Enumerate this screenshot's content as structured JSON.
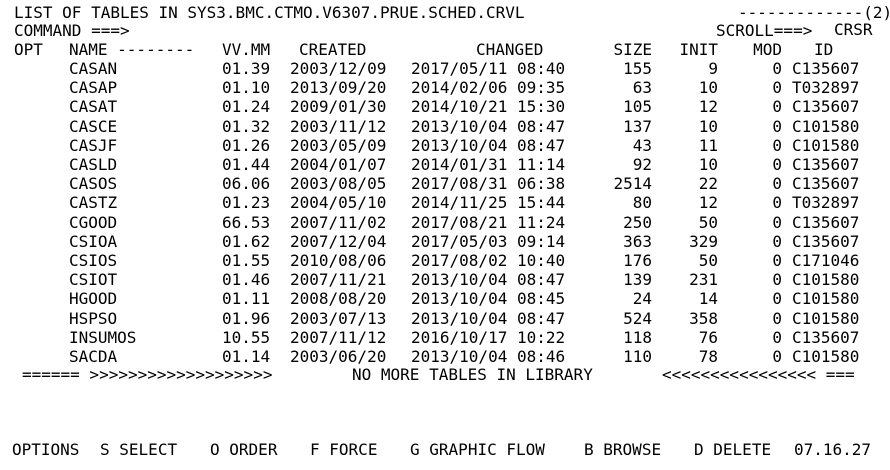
{
  "header": {
    "title": "LIST OF TABLES IN SYS3.BMC.CTMO.V6307.PRUE.SCHED.CRVL",
    "page_indicator": "-------------(2)",
    "command_label": "COMMAND ===>",
    "command_value": "",
    "scroll_label": "SCROLL===>",
    "scroll_value": "CRSR"
  },
  "columns": {
    "opt": "OPT",
    "name": "NAME --------",
    "vvmm": "VV.MM",
    "created": "CREATED",
    "changed": "CHANGED",
    "size": "SIZE",
    "init": "INIT",
    "mod": "MOD",
    "id": "ID"
  },
  "rows": [
    {
      "name": "CASAN",
      "vvmm": "01.39",
      "created": "2003/12/09",
      "changed": "2017/05/11 08:40",
      "size": "155",
      "init": "9",
      "mod": "0",
      "id": "C135607"
    },
    {
      "name": "CASAP",
      "vvmm": "01.10",
      "created": "2013/09/20",
      "changed": "2014/02/06 09:35",
      "size": "63",
      "init": "10",
      "mod": "0",
      "id": "T032897"
    },
    {
      "name": "CASAT",
      "vvmm": "01.24",
      "created": "2009/01/30",
      "changed": "2014/10/21 15:30",
      "size": "105",
      "init": "12",
      "mod": "0",
      "id": "C135607"
    },
    {
      "name": "CASCE",
      "vvmm": "01.32",
      "created": "2003/11/12",
      "changed": "2013/10/04 08:47",
      "size": "137",
      "init": "10",
      "mod": "0",
      "id": "C101580"
    },
    {
      "name": "CASJF",
      "vvmm": "01.26",
      "created": "2003/05/09",
      "changed": "2013/10/04 08:47",
      "size": "43",
      "init": "11",
      "mod": "0",
      "id": "C101580"
    },
    {
      "name": "CASLD",
      "vvmm": "01.44",
      "created": "2004/01/07",
      "changed": "2014/01/31 11:14",
      "size": "92",
      "init": "10",
      "mod": "0",
      "id": "C135607"
    },
    {
      "name": "CASOS",
      "vvmm": "06.06",
      "created": "2003/08/05",
      "changed": "2017/08/31 06:38",
      "size": "2514",
      "init": "22",
      "mod": "0",
      "id": "C135607"
    },
    {
      "name": "CASTZ",
      "vvmm": "01.23",
      "created": "2004/05/10",
      "changed": "2014/11/25 15:44",
      "size": "80",
      "init": "12",
      "mod": "0",
      "id": "T032897"
    },
    {
      "name": "CGOOD",
      "vvmm": "66.53",
      "created": "2007/11/02",
      "changed": "2017/08/21 11:24",
      "size": "250",
      "init": "50",
      "mod": "0",
      "id": "C135607"
    },
    {
      "name": "CSIOA",
      "vvmm": "01.62",
      "created": "2007/12/04",
      "changed": "2017/05/03 09:14",
      "size": "363",
      "init": "329",
      "mod": "0",
      "id": "C135607"
    },
    {
      "name": "CSIOS",
      "vvmm": "01.55",
      "created": "2010/08/06",
      "changed": "2017/08/02 10:40",
      "size": "176",
      "init": "50",
      "mod": "0",
      "id": "C171046"
    },
    {
      "name": "CSIOT",
      "vvmm": "01.46",
      "created": "2007/11/21",
      "changed": "2013/10/04 08:47",
      "size": "139",
      "init": "231",
      "mod": "0",
      "id": "C101580"
    },
    {
      "name": "HGOOD",
      "vvmm": "01.11",
      "created": "2008/08/20",
      "changed": "2013/10/04 08:45",
      "size": "24",
      "init": "14",
      "mod": "0",
      "id": "C101580"
    },
    {
      "name": "HSPSO",
      "vvmm": "01.96",
      "created": "2003/07/13",
      "changed": "2013/10/04 08:47",
      "size": "524",
      "init": "358",
      "mod": "0",
      "id": "C101580"
    },
    {
      "name": "INSUMOS",
      "vvmm": "10.55",
      "created": "2007/11/12",
      "changed": "2016/10/17 10:22",
      "size": "118",
      "init": "76",
      "mod": "0",
      "id": "C135607"
    },
    {
      "name": "SACDA",
      "vvmm": "01.14",
      "created": "2003/06/20",
      "changed": "2013/10/04 08:46",
      "size": "110",
      "init": "78",
      "mod": "0",
      "id": "C101580"
    }
  ],
  "footer_banner": {
    "left": "====== >>>>>>>>>>>>>>>>>>>",
    "center": "NO MORE TABLES IN LIBRARY",
    "right": "<<<<<<<<<<<<<<<< ==="
  },
  "options_bar": {
    "label": "OPTIONS",
    "items": [
      {
        "key": "S",
        "label": "SELECT"
      },
      {
        "key": "O",
        "label": "ORDER"
      },
      {
        "key": "F",
        "label": "FORCE"
      },
      {
        "key": "G",
        "label": "GRAPHIC FLOW"
      },
      {
        "key": "B",
        "label": "BROWSE"
      },
      {
        "key": "D",
        "label": "DELETE"
      }
    ],
    "time": "07.16.27"
  }
}
